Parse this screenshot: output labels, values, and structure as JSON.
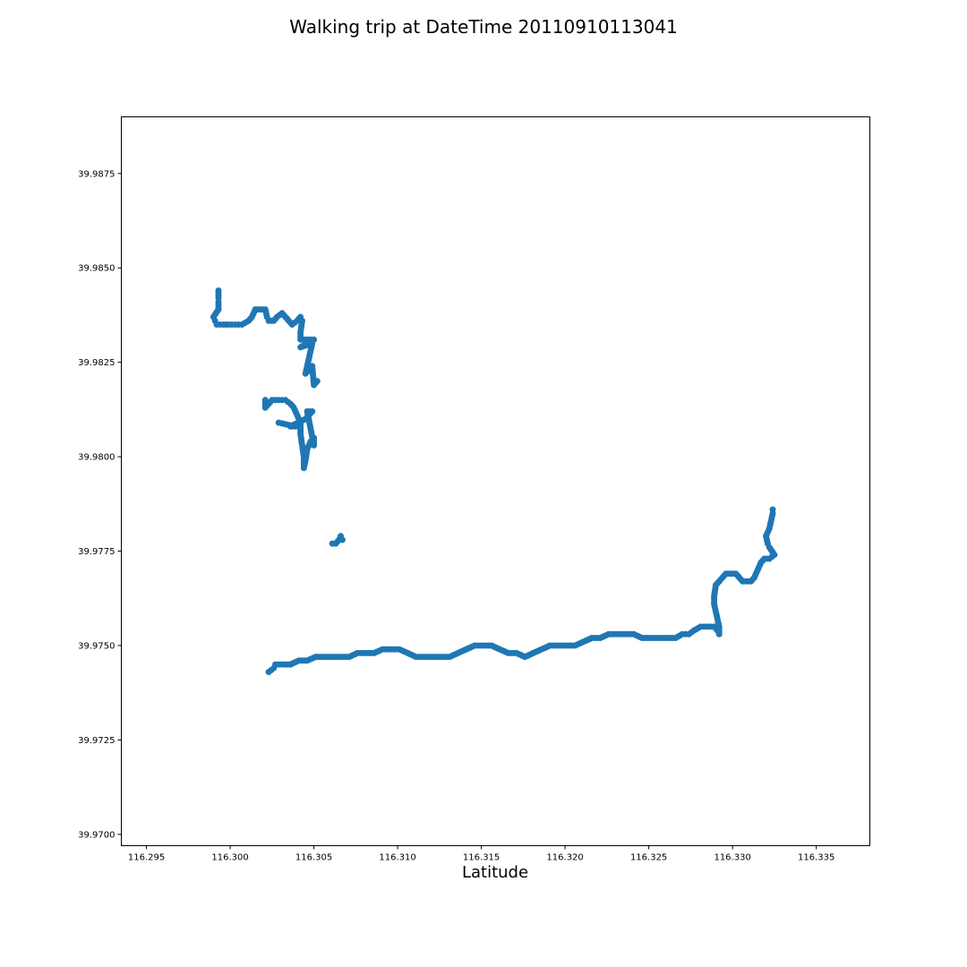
{
  "chart_data": {
    "type": "scatter",
    "title": "Walking trip at DateTime 20110910113041",
    "xlabel": "Latitude",
    "ylabel": "",
    "xlim": [
      116.2935,
      116.3382
    ],
    "ylim": [
      39.9697,
      39.989
    ],
    "xticks": [
      "116.295",
      "116.300",
      "116.305",
      "116.310",
      "116.315",
      "116.320",
      "116.325",
      "116.330",
      "116.335"
    ],
    "yticks": [
      "39.9700",
      "39.9725",
      "39.9750",
      "39.9775",
      "39.9800",
      "39.9825",
      "39.9850",
      "39.9875"
    ],
    "grid": false,
    "marker_color": "#1f77b4",
    "series": [
      {
        "values": [
          [
            116.2993,
            39.9844
          ],
          [
            116.2993,
            39.9842
          ],
          [
            116.2993,
            39.9841
          ],
          [
            116.2993,
            39.9839
          ],
          [
            116.299,
            39.9837
          ],
          [
            116.2991,
            39.9836
          ],
          [
            116.2992,
            39.9835
          ],
          [
            116.2996,
            39.9835
          ],
          [
            116.2999,
            39.9835
          ],
          [
            116.3003,
            39.9835
          ],
          [
            116.3007,
            39.9835
          ],
          [
            116.3011,
            39.9836
          ],
          [
            116.3013,
            39.9837
          ],
          [
            116.3015,
            39.9839
          ],
          [
            116.3018,
            39.9839
          ],
          [
            116.3021,
            39.9839
          ],
          [
            116.3022,
            39.9837
          ],
          [
            116.3023,
            39.9836
          ],
          [
            116.3026,
            39.9836
          ],
          [
            116.3028,
            39.9837
          ],
          [
            116.3031,
            39.9838
          ],
          [
            116.3033,
            39.9837
          ],
          [
            116.3035,
            39.9836
          ],
          [
            116.3037,
            39.9835
          ],
          [
            116.304,
            39.9836
          ],
          [
            116.3042,
            39.9837
          ],
          [
            116.3043,
            39.9836
          ],
          [
            116.3042,
            39.9833
          ],
          [
            116.3042,
            39.9831
          ],
          [
            116.3045,
            39.9831
          ],
          [
            116.3048,
            39.9831
          ],
          [
            116.305,
            39.9831
          ],
          [
            116.3042,
            39.9829
          ],
          [
            116.3049,
            39.983
          ],
          [
            116.3045,
            39.9822
          ],
          [
            116.3049,
            39.9824
          ],
          [
            116.305,
            39.9819
          ],
          [
            116.3052,
            39.982
          ],
          [
            116.3021,
            39.9815
          ],
          [
            116.3021,
            39.9813
          ],
          [
            116.3025,
            39.9815
          ],
          [
            116.3029,
            39.9815
          ],
          [
            116.3033,
            39.9815
          ],
          [
            116.3036,
            39.9814
          ],
          [
            116.3038,
            39.9813
          ],
          [
            116.304,
            39.9811
          ],
          [
            116.3042,
            39.9809
          ],
          [
            116.3042,
            39.9806
          ],
          [
            116.3043,
            39.9803
          ],
          [
            116.3044,
            39.98
          ],
          [
            116.3044,
            39.9797
          ],
          [
            116.3045,
            39.9799
          ],
          [
            116.3046,
            39.9802
          ],
          [
            116.3048,
            39.9804
          ],
          [
            116.305,
            39.9805
          ],
          [
            116.305,
            39.9803
          ],
          [
            116.3046,
            39.9812
          ],
          [
            116.3049,
            39.9812
          ],
          [
            116.3045,
            39.981
          ],
          [
            116.3036,
            39.9808
          ],
          [
            116.3039,
            39.9808
          ],
          [
            116.3029,
            39.9809
          ],
          [
            116.3061,
            39.9777
          ],
          [
            116.3063,
            39.9777
          ],
          [
            116.3065,
            39.9778
          ],
          [
            116.3066,
            39.9779
          ],
          [
            116.3067,
            39.9778
          ],
          [
            116.3023,
            39.9743
          ],
          [
            116.3026,
            39.9744
          ],
          [
            116.3027,
            39.9745
          ],
          [
            116.3031,
            39.9745
          ],
          [
            116.3036,
            39.9745
          ],
          [
            116.3041,
            39.9746
          ],
          [
            116.3046,
            39.9746
          ],
          [
            116.3051,
            39.9747
          ],
          [
            116.3056,
            39.9747
          ],
          [
            116.3061,
            39.9747
          ],
          [
            116.3066,
            39.9747
          ],
          [
            116.3071,
            39.9747
          ],
          [
            116.3076,
            39.9748
          ],
          [
            116.3081,
            39.9748
          ],
          [
            116.3086,
            39.9748
          ],
          [
            116.3091,
            39.9749
          ],
          [
            116.3096,
            39.9749
          ],
          [
            116.3101,
            39.9749
          ],
          [
            116.3106,
            39.9748
          ],
          [
            116.3111,
            39.9747
          ],
          [
            116.3116,
            39.9747
          ],
          [
            116.3121,
            39.9747
          ],
          [
            116.3126,
            39.9747
          ],
          [
            116.3131,
            39.9747
          ],
          [
            116.3136,
            39.9748
          ],
          [
            116.3141,
            39.9749
          ],
          [
            116.3146,
            39.975
          ],
          [
            116.3151,
            39.975
          ],
          [
            116.3156,
            39.975
          ],
          [
            116.3161,
            39.9749
          ],
          [
            116.3166,
            39.9748
          ],
          [
            116.3171,
            39.9748
          ],
          [
            116.3176,
            39.9747
          ],
          [
            116.3181,
            39.9748
          ],
          [
            116.3186,
            39.9749
          ],
          [
            116.3191,
            39.975
          ],
          [
            116.3196,
            39.975
          ],
          [
            116.3201,
            39.975
          ],
          [
            116.3206,
            39.975
          ],
          [
            116.3211,
            39.9751
          ],
          [
            116.3216,
            39.9752
          ],
          [
            116.3221,
            39.9752
          ],
          [
            116.3226,
            39.9753
          ],
          [
            116.3231,
            39.9753
          ],
          [
            116.3236,
            39.9753
          ],
          [
            116.3241,
            39.9753
          ],
          [
            116.3246,
            39.9752
          ],
          [
            116.3251,
            39.9752
          ],
          [
            116.3256,
            39.9752
          ],
          [
            116.3261,
            39.9752
          ],
          [
            116.3266,
            39.9752
          ],
          [
            116.327,
            39.9753
          ],
          [
            116.3274,
            39.9753
          ],
          [
            116.3277,
            39.9754
          ],
          [
            116.3281,
            39.9755
          ],
          [
            116.3285,
            39.9755
          ],
          [
            116.3289,
            39.9755
          ],
          [
            116.3291,
            39.9754
          ],
          [
            116.3292,
            39.9753
          ],
          [
            116.3292,
            39.9755
          ],
          [
            116.3291,
            39.9757
          ],
          [
            116.329,
            39.9759
          ],
          [
            116.3289,
            39.9761
          ],
          [
            116.3289,
            39.9763
          ],
          [
            116.329,
            39.9766
          ],
          [
            116.3292,
            39.9767
          ],
          [
            116.3294,
            39.9768
          ],
          [
            116.3296,
            39.9769
          ],
          [
            116.3299,
            39.9769
          ],
          [
            116.3302,
            39.9769
          ],
          [
            116.3304,
            39.9768
          ],
          [
            116.3306,
            39.9767
          ],
          [
            116.3308,
            39.9767
          ],
          [
            116.3311,
            39.9767
          ],
          [
            116.3313,
            39.9768
          ],
          [
            116.3315,
            39.977
          ],
          [
            116.3317,
            39.9772
          ],
          [
            116.3319,
            39.9773
          ],
          [
            116.3322,
            39.9773
          ],
          [
            116.3325,
            39.9774
          ],
          [
            116.3322,
            39.9776
          ],
          [
            116.3321,
            39.9777
          ],
          [
            116.332,
            39.9779
          ],
          [
            116.3322,
            39.9781
          ],
          [
            116.3323,
            39.9783
          ],
          [
            116.3324,
            39.9785
          ],
          [
            116.3324,
            39.9786
          ]
        ]
      }
    ]
  }
}
